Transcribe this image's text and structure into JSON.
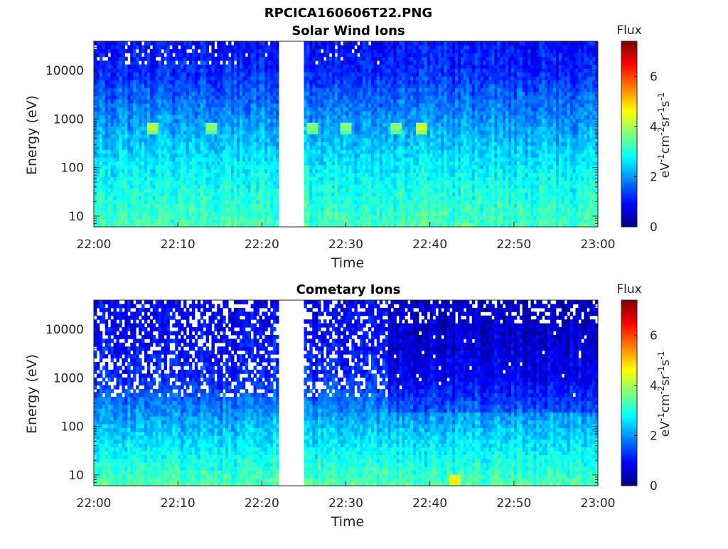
{
  "figure": {
    "title": "RPCICA160606T22.PNG"
  },
  "colors": {
    "jet": [
      "#00007f",
      "#0000ff",
      "#007fff",
      "#00ffff",
      "#7fff7f",
      "#ffff00",
      "#ff7f00",
      "#ff0000",
      "#7f0000"
    ]
  },
  "chart_data": [
    {
      "type": "heatmap",
      "title": "Solar Wind Ions",
      "xlabel": "Time",
      "ylabel": "Energy (eV)",
      "x_range": [
        "22:00",
        "23:00"
      ],
      "x_ticks": [
        "22:00",
        "22:10",
        "22:20",
        "22:30",
        "22:40",
        "22:50",
        "23:00"
      ],
      "y_scale": "log",
      "y_range": [
        6,
        40000
      ],
      "y_ticks": [
        10,
        100,
        1000,
        10000
      ],
      "y_tick_labels": [
        "10",
        "100",
        "1000",
        "10000"
      ],
      "data_gap": [
        "22:22",
        "22:25"
      ],
      "colorbar": {
        "title": "Flux",
        "label": "eV-1cm-2sr-1s-1",
        "range": [
          0,
          7.4
        ],
        "ticks": [
          0,
          2,
          4,
          6
        ]
      },
      "flux_profile": {
        "energy_eV": [
          6,
          10,
          100,
          1000,
          10000,
          40000
        ],
        "typical_flux": [
          3.3,
          3.2,
          2.7,
          2.0,
          1.2,
          1.0
        ]
      },
      "features": [
        {
          "time": "22:07",
          "energy_eV": 700,
          "flux": 4.3
        },
        {
          "time": "22:14",
          "energy_eV": 700,
          "flux": 4.0
        },
        {
          "time": "22:26",
          "energy_eV": 700,
          "flux": 4.0
        },
        {
          "time": "22:30",
          "energy_eV": 700,
          "flux": 4.0
        },
        {
          "time": "22:36",
          "energy_eV": 700,
          "flux": 4.0
        },
        {
          "time": "22:39",
          "energy_eV": 700,
          "flux": 4.5
        }
      ]
    },
    {
      "type": "heatmap",
      "title": "Cometary Ions",
      "xlabel": "Time",
      "ylabel": "Energy (eV)",
      "x_range": [
        "22:00",
        "23:00"
      ],
      "x_ticks": [
        "22:00",
        "22:10",
        "22:20",
        "22:30",
        "22:40",
        "22:50",
        "23:00"
      ],
      "y_scale": "log",
      "y_range": [
        6,
        40000
      ],
      "y_ticks": [
        10,
        100,
        1000,
        10000
      ],
      "y_tick_labels": [
        "10",
        "100",
        "1000",
        "10000"
      ],
      "data_gap": [
        "22:22",
        "22:25"
      ],
      "colorbar": {
        "title": "Flux",
        "label": "eV-1cm-2sr-1s-1",
        "range": [
          0,
          7.4
        ],
        "ticks": [
          0,
          2,
          4,
          6
        ]
      },
      "flux_profile": {
        "energy_eV": [
          6,
          10,
          100,
          1000,
          10000,
          40000
        ],
        "typical_flux": [
          3.4,
          3.2,
          2.3,
          1.2,
          0.9,
          0.9
        ]
      },
      "features": [
        {
          "time": "22:43",
          "energy_eV": 8,
          "flux": 4.8
        }
      ]
    }
  ]
}
